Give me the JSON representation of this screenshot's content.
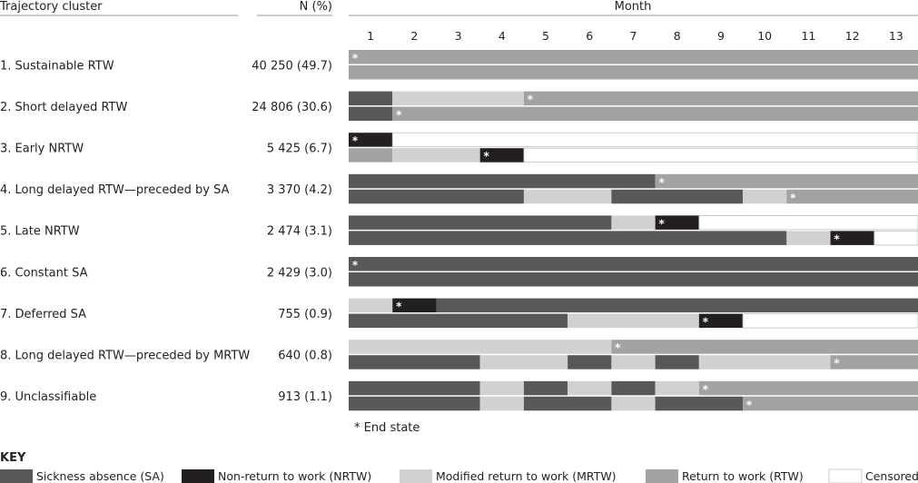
{
  "chart_data": {
    "type": "table",
    "title": "",
    "headers": {
      "cluster": "Trajectory cluster",
      "n": "N (%)",
      "month": "Month"
    },
    "months": [
      "1",
      "2",
      "3",
      "4",
      "5",
      "6",
      "7",
      "8",
      "9",
      "10",
      "11",
      "12",
      "13"
    ],
    "state_colors": {
      "SA": "#58585a",
      "NRTW": "#231f20",
      "MRTW": "#d1d1d1",
      "RTW": "#a2a2a2",
      "C": "#ffffff"
    },
    "end_marker": "*",
    "footnote": "* End state",
    "clusters": [
      {
        "label": "1. Sustainable RTW",
        "n": "40 250 (49.7)",
        "rows": [
          {
            "segments": [
              [
                "RTW",
                13
              ]
            ],
            "end_month": 1
          },
          {
            "segments": [
              [
                "RTW",
                13
              ]
            ],
            "end_month": null
          }
        ]
      },
      {
        "label": "2. Short delayed RTW",
        "n": "24 806 (30.6)",
        "rows": [
          {
            "segments": [
              [
                "SA",
                1
              ],
              [
                "MRTW",
                3
              ],
              [
                "RTW",
                9
              ]
            ],
            "end_month": 5
          },
          {
            "segments": [
              [
                "SA",
                1
              ],
              [
                "RTW",
                12
              ]
            ],
            "end_month": 2
          }
        ]
      },
      {
        "label": "3. Early NRTW",
        "n": "5 425 (6.7)",
        "rows": [
          {
            "segments": [
              [
                "NRTW",
                1
              ],
              [
                "C",
                12
              ]
            ],
            "end_month": 1
          },
          {
            "segments": [
              [
                "RTW",
                1
              ],
              [
                "MRTW",
                2
              ],
              [
                "NRTW",
                1
              ],
              [
                "C",
                9
              ]
            ],
            "end_month": 4
          }
        ]
      },
      {
        "label": "4. Long delayed RTW—preceded by SA",
        "n": "3 370 (4.2)",
        "rows": [
          {
            "segments": [
              [
                "SA",
                7
              ],
              [
                "RTW",
                6
              ]
            ],
            "end_month": 8
          },
          {
            "segments": [
              [
                "SA",
                4
              ],
              [
                "MRTW",
                2
              ],
              [
                "SA",
                3
              ],
              [
                "MRTW",
                1
              ],
              [
                "RTW",
                3
              ]
            ],
            "end_month": 11
          }
        ]
      },
      {
        "label": "5. Late NRTW",
        "n": "2 474 (3.1)",
        "rows": [
          {
            "segments": [
              [
                "SA",
                6
              ],
              [
                "MRTW",
                1
              ],
              [
                "NRTW",
                1
              ],
              [
                "C",
                5
              ]
            ],
            "end_month": 8
          },
          {
            "segments": [
              [
                "SA",
                10
              ],
              [
                "MRTW",
                1
              ],
              [
                "NRTW",
                1
              ],
              [
                "C",
                1
              ]
            ],
            "end_month": 12
          }
        ]
      },
      {
        "label": "6. Constant SA",
        "n": "2 429 (3.0)",
        "rows": [
          {
            "segments": [
              [
                "SA",
                13
              ]
            ],
            "end_month": 1
          },
          {
            "segments": [
              [
                "SA",
                13
              ]
            ],
            "end_month": null
          }
        ]
      },
      {
        "label": "7. Deferred SA",
        "n": "755 (0.9)",
        "rows": [
          {
            "segments": [
              [
                "MRTW",
                1
              ],
              [
                "NRTW",
                1
              ],
              [
                "SA",
                11
              ]
            ],
            "end_month": 2
          },
          {
            "segments": [
              [
                "SA",
                5
              ],
              [
                "MRTW",
                3
              ],
              [
                "NRTW",
                1
              ],
              [
                "C",
                4
              ]
            ],
            "end_month": 9
          }
        ]
      },
      {
        "label": "8. Long delayed RTW—preceded by MRTW",
        "n": "640 (0.8)",
        "rows": [
          {
            "segments": [
              [
                "MRTW",
                6
              ],
              [
                "RTW",
                7
              ]
            ],
            "end_month": 7
          },
          {
            "segments": [
              [
                "SA",
                3
              ],
              [
                "MRTW",
                2
              ],
              [
                "SA",
                1
              ],
              [
                "MRTW",
                1
              ],
              [
                "SA",
                1
              ],
              [
                "MRTW",
                3
              ],
              [
                "RTW",
                2
              ]
            ],
            "end_month": 12
          }
        ]
      },
      {
        "label": "9. Unclassifiable",
        "n": "913 (1.1)",
        "rows": [
          {
            "segments": [
              [
                "SA",
                3
              ],
              [
                "MRTW",
                1
              ],
              [
                "SA",
                1
              ],
              [
                "MRTW",
                1
              ],
              [
                "SA",
                1
              ],
              [
                "MRTW",
                1
              ],
              [
                "RTW",
                5
              ]
            ],
            "end_month": 9
          },
          {
            "segments": [
              [
                "SA",
                3
              ],
              [
                "MRTW",
                1
              ],
              [
                "SA",
                2
              ],
              [
                "MRTW",
                1
              ],
              [
                "SA",
                2
              ],
              [
                "RTW",
                4
              ]
            ],
            "end_month": 10
          }
        ]
      }
    ],
    "legend": {
      "title": "KEY",
      "entries": [
        {
          "state": "SA",
          "label": "Sickness absence (SA)"
        },
        {
          "state": "NRTW",
          "label": "Non-return to work (NRTW)"
        },
        {
          "state": "MRTW",
          "label": "Modified return to work (MRTW)"
        },
        {
          "state": "RTW",
          "label": "Return to work (RTW)"
        },
        {
          "state": "C",
          "label": "Censored"
        }
      ]
    }
  }
}
